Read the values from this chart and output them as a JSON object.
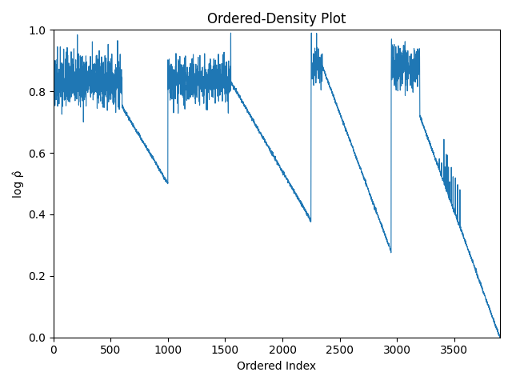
{
  "title": "Ordered-Density Plot",
  "xlabel": "Ordered Index",
  "ylabel": "log ρ̂",
  "xlim": [
    0,
    3900
  ],
  "ylim": [
    0.0,
    1.0
  ],
  "line_color": "#1f77b4",
  "line_width": 0.8,
  "figsize": [
    6.4,
    4.8
  ],
  "dpi": 100,
  "random_seed": 42
}
